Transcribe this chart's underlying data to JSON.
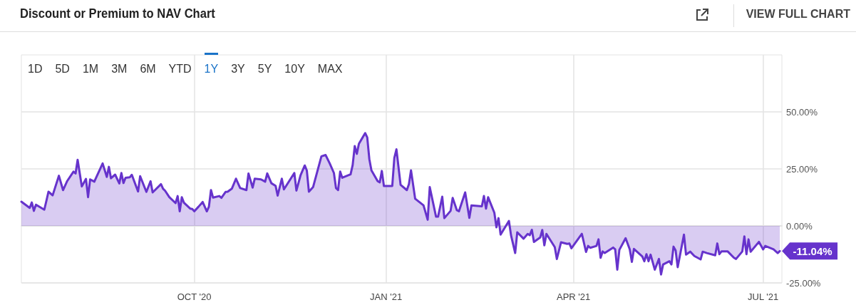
{
  "chart_data": {
    "type": "area",
    "title": "Discount or Premium to NAV Chart",
    "annotations": [
      "VIEW FULL CHART",
      "1D",
      "5D",
      "1M",
      "3M",
      "6M",
      "YTD",
      "1Y",
      "3Y",
      "5Y",
      "10Y",
      "MAX",
      {
        "text": "-11.04%",
        "x": "2021-07-09",
        "y": -11.04
      }
    ],
    "x": [
      "2020-07-10",
      "2020-07-14",
      "2020-07-15",
      "2020-07-16",
      "2020-07-17",
      "2020-07-21",
      "2020-07-22",
      "2020-07-23",
      "2020-07-25",
      "2020-07-28",
      "2020-07-30",
      "2020-08-01",
      "2020-08-04",
      "2020-08-05",
      "2020-08-06",
      "2020-08-08",
      "2020-08-10",
      "2020-08-11",
      "2020-08-12",
      "2020-08-14",
      "2020-08-18",
      "2020-08-20",
      "2020-08-21",
      "2020-08-22",
      "2020-08-24",
      "2020-08-26",
      "2020-08-27",
      "2020-08-28",
      "2020-08-29",
      "2020-08-31",
      "2020-09-01",
      "2020-09-04",
      "2020-09-05",
      "2020-09-08",
      "2020-09-10",
      "2020-09-11",
      "2020-09-15",
      "2020-09-16",
      "2020-09-17",
      "2020-09-19",
      "2020-09-22",
      "2020-09-23",
      "2020-09-24",
      "2020-09-25",
      "2020-09-26",
      "2020-09-29",
      "2020-09-30",
      "2020-10-01",
      "2020-10-03",
      "2020-10-05",
      "2020-10-07",
      "2020-10-08",
      "2020-10-09",
      "2020-10-10",
      "2020-10-13",
      "2020-10-14",
      "2020-10-16",
      "2020-10-17",
      "2020-10-19",
      "2020-10-21",
      "2020-10-23",
      "2020-10-26",
      "2020-10-27",
      "2020-10-29",
      "2020-10-30",
      "2020-11-02",
      "2020-11-04",
      "2020-11-05",
      "2020-11-07",
      "2020-11-09",
      "2020-11-10",
      "2020-11-12",
      "2020-11-13",
      "2020-11-18",
      "2020-11-19",
      "2020-11-21",
      "2020-11-23",
      "2020-11-24",
      "2020-11-25",
      "2020-11-27",
      "2020-12-01",
      "2020-12-03",
      "2020-12-05",
      "2020-12-07",
      "2020-12-08",
      "2020-12-09",
      "2020-12-10",
      "2020-12-11",
      "2020-12-15",
      "2020-12-16",
      "2020-12-17",
      "2020-12-18",
      "2020-12-19",
      "2020-12-22",
      "2020-12-23",
      "2020-12-24",
      "2020-12-25",
      "2020-12-28",
      "2020-12-29",
      "2020-12-30",
      "2020-12-31",
      "2021-01-04",
      "2021-01-05",
      "2021-01-06",
      "2021-01-08",
      "2021-01-11",
      "2021-01-12",
      "2021-01-13",
      "2021-01-15",
      "2021-01-19",
      "2021-01-21",
      "2021-01-22",
      "2021-01-25",
      "2021-01-26",
      "2021-01-28",
      "2021-01-29",
      "2021-02-01",
      "2021-02-02",
      "2021-02-04",
      "2021-02-05",
      "2021-02-08",
      "2021-02-10",
      "2021-02-11",
      "2021-02-16",
      "2021-02-17",
      "2021-02-18",
      "2021-02-19",
      "2021-02-22",
      "2021-02-23",
      "2021-02-24",
      "2021-02-25",
      "2021-03-01",
      "2021-03-02",
      "2021-03-04",
      "2021-03-05",
      "2021-03-08",
      "2021-03-10",
      "2021-03-11",
      "2021-03-12",
      "2021-03-13",
      "2021-03-16",
      "2021-03-17",
      "2021-03-18",
      "2021-03-19",
      "2021-03-23",
      "2021-03-24",
      "2021-03-26",
      "2021-03-29",
      "2021-03-30",
      "2021-03-31",
      "2021-04-05",
      "2021-04-07",
      "2021-04-08",
      "2021-04-09",
      "2021-04-12",
      "2021-04-13",
      "2021-04-14",
      "2021-04-15",
      "2021-04-16",
      "2021-04-20",
      "2021-04-21",
      "2021-04-22",
      "2021-04-23",
      "2021-04-26",
      "2021-04-28",
      "2021-04-29",
      "2021-04-30",
      "2021-05-04",
      "2021-05-05",
      "2021-05-06",
      "2021-05-07",
      "2021-05-08",
      "2021-05-10",
      "2021-05-12",
      "2021-05-13",
      "2021-05-14",
      "2021-05-17",
      "2021-05-18",
      "2021-05-19",
      "2021-05-20",
      "2021-05-21",
      "2021-05-24",
      "2021-05-25",
      "2021-05-27",
      "2021-05-29",
      "2021-06-01",
      "2021-06-02",
      "2021-06-04",
      "2021-06-08",
      "2021-06-09",
      "2021-06-10",
      "2021-06-11",
      "2021-06-14",
      "2021-06-17",
      "2021-06-18",
      "2021-06-21",
      "2021-06-22",
      "2021-06-23",
      "2021-06-24",
      "2021-06-25",
      "2021-06-29",
      "2021-07-01",
      "2021-07-02",
      "2021-07-06",
      "2021-07-08",
      "2021-07-09"
    ],
    "series": [
      {
        "color": "#6633cc",
        "values": [
          10.6,
          7.9,
          10.3,
          6.6,
          9.3,
          7.1,
          11.0,
          15.0,
          13.4,
          22.0,
          15.7,
          19.7,
          23.8,
          23.0,
          29.0,
          17.3,
          20.6,
          12.6,
          20.4,
          19.4,
          27.4,
          21.5,
          25.9,
          20.9,
          22.5,
          18.6,
          23.2,
          18.8,
          21.1,
          21.3,
          22.4,
          15.1,
          21.8,
          14.9,
          19.6,
          14.7,
          18.3,
          16.3,
          15.4,
          12.6,
          10.0,
          13.1,
          6.4,
          12.6,
          10.2,
          7.6,
          7.4,
          6.4,
          8.4,
          10.5,
          6.4,
          8.4,
          15.7,
          12.4,
          13.1,
          12.3,
          14.9,
          15.0,
          16.3,
          20.7,
          16.6,
          15.7,
          23.0,
          16.8,
          20.7,
          20.4,
          19.4,
          23.0,
          18.7,
          17.6,
          13.3,
          20.7,
          16.0,
          23.2,
          15.5,
          22.2,
          26.5,
          24.3,
          15.0,
          17.0,
          30.5,
          31.1,
          27.4,
          23.2,
          16.6,
          15.7,
          23.8,
          21.1,
          22.6,
          26.7,
          35.0,
          31.6,
          36.0,
          40.7,
          38.8,
          29.3,
          24.4,
          19.6,
          19.1,
          24.1,
          17.5,
          17.5,
          29.8,
          33.6,
          18.0,
          15.7,
          18.3,
          24.4,
          11.9,
          9.0,
          2.7,
          17.0,
          4.1,
          4.1,
          12.8,
          3.4,
          6.6,
          12.3,
          6.9,
          6.4,
          14.7,
          3.5,
          9.0,
          8.6,
          13.1,
          7.6,
          12.6,
          5.8,
          -0.6,
          3.4,
          -3.8,
          2.2,
          -4.1,
          -11.9,
          -2.8,
          -5.6,
          -3.5,
          -4.1,
          -1.7,
          -7.0,
          -5.1,
          -1.8,
          -8.5,
          -3.5,
          -9.3,
          -14.5,
          -7.2,
          -7.9,
          -7.7,
          -9.8,
          -3.5,
          -11.4,
          -8.8,
          -9.6,
          -8.8,
          -5.9,
          -14.0,
          -11.2,
          -11.9,
          -9.5,
          -10.3,
          -19.2,
          -10.5,
          -5.4,
          -10.3,
          -15.8,
          -10.1,
          -13.4,
          -15.5,
          -12.4,
          -15.5,
          -12.6,
          -19.2,
          -14.5,
          -21.3,
          -16.9,
          -15.5,
          -16.9,
          -9.1,
          -10.8,
          -18.1,
          -3.8,
          -12.6,
          -11.3,
          -13.2,
          -14.7,
          -11.3,
          -11.9,
          -12.9,
          -7.7,
          -12.4,
          -11.2,
          -11.2,
          -14.0,
          -14.5,
          -11.2,
          -4.6,
          -12.4,
          -5.9,
          -11.3,
          -7.0,
          -10.3,
          -8.8,
          -10.3,
          -11.9,
          -11.04
        ]
      }
    ],
    "xlim": [
      "2020-07-10",
      "2021-07-10"
    ],
    "xticks": [
      {
        "value": "2020-10-01",
        "label": "OCT '20"
      },
      {
        "value": "2021-01-01",
        "label": "JAN '21"
      },
      {
        "value": "2021-04-01",
        "label": "APR '21"
      },
      {
        "value": "2021-07-01",
        "label": "JUL '21"
      }
    ],
    "ylim": [
      -25,
      75
    ],
    "yticks": [
      {
        "value": -25,
        "label": "-25.00%"
      },
      {
        "value": 0,
        "label": "0.00%"
      },
      {
        "value": 25,
        "label": "25.00%"
      },
      {
        "value": 50,
        "label": "50.00%"
      }
    ],
    "grid": true,
    "marker": "none",
    "line_style": "solid"
  }
}
